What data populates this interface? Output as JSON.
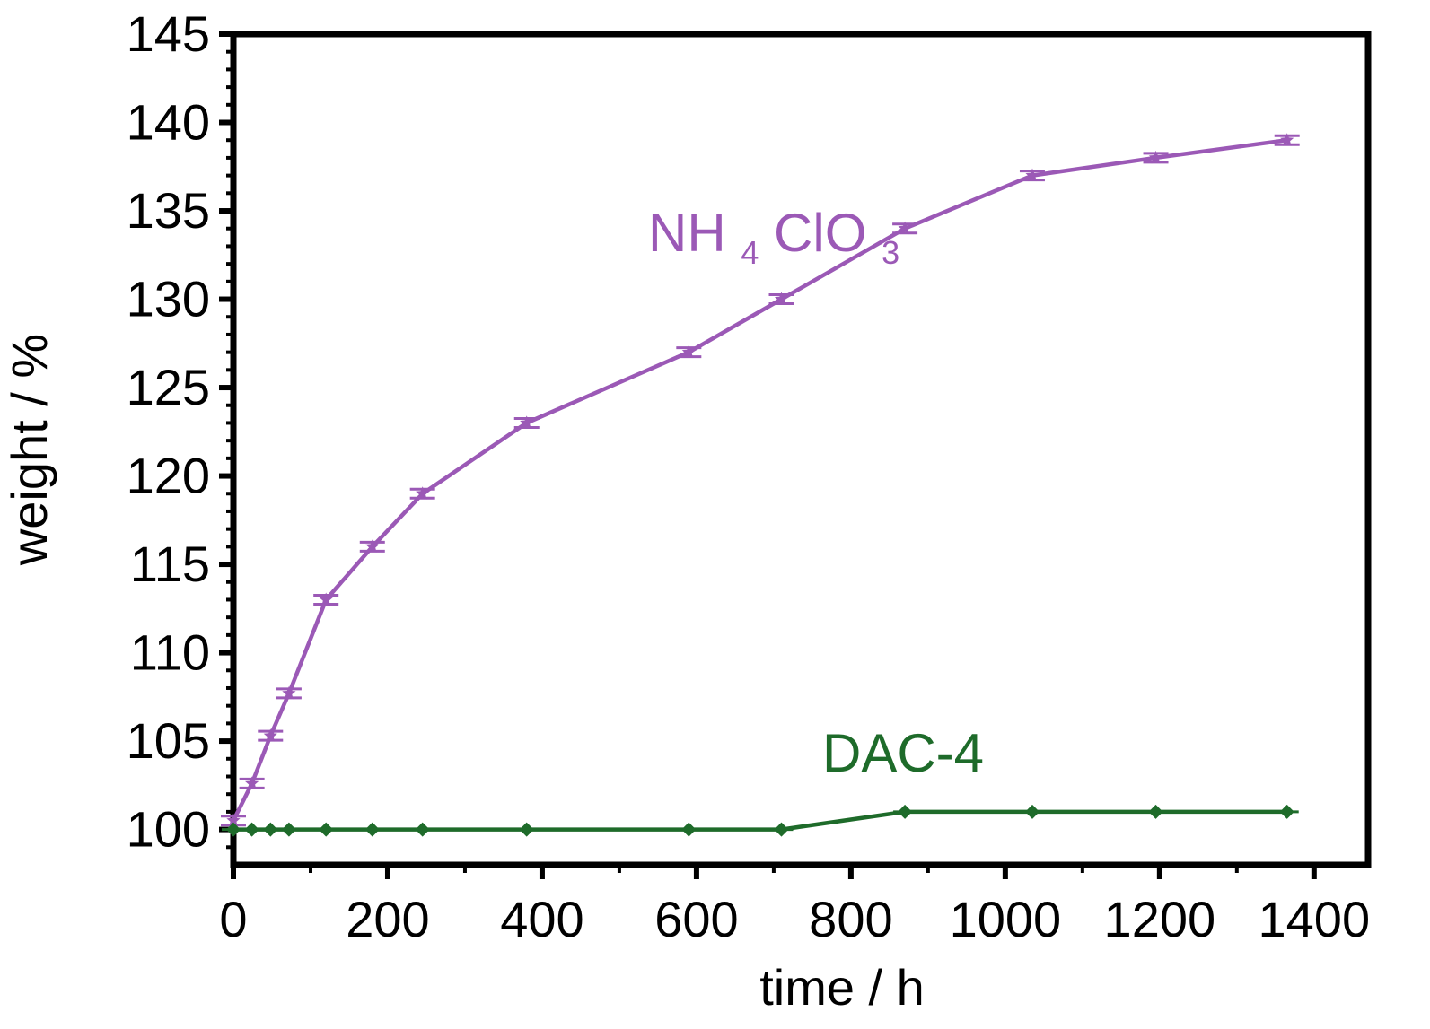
{
  "chart_data": {
    "type": "line",
    "xlabel": "time / h",
    "ylabel": "weight / %",
    "xlim": [
      0,
      1470
    ],
    "ylim": [
      98,
      145
    ],
    "x_ticks": [
      0,
      200,
      400,
      600,
      800,
      1000,
      1200,
      1400
    ],
    "y_ticks": [
      100,
      105,
      110,
      115,
      120,
      125,
      130,
      135,
      140,
      145
    ],
    "x_tick_labels": [
      "0",
      "200",
      "400",
      "600",
      "800",
      "1000",
      "1200",
      "1400"
    ],
    "y_tick_labels": [
      "100",
      "105",
      "110",
      "115",
      "120",
      "125",
      "130",
      "135",
      "140",
      "145"
    ],
    "grid": false,
    "series": [
      {
        "name": "NH4ClO3",
        "label_main_1": "NH",
        "label_sub_1": "4",
        "label_main_2": "ClO",
        "label_sub_2": "3",
        "color": "#9B59B6",
        "marker": "star",
        "x": [
          0,
          24,
          48,
          72,
          120,
          180,
          245,
          380,
          590,
          710,
          870,
          1035,
          1195,
          1365
        ],
        "y": [
          100.5,
          102.6,
          105.3,
          107.7,
          113,
          116,
          119,
          123,
          127,
          130,
          134,
          137,
          138,
          139
        ]
      },
      {
        "name": "DAC-4",
        "label": "DAC-4",
        "color": "#1E6B2A",
        "marker": "diamond",
        "x": [
          0,
          24,
          48,
          72,
          120,
          180,
          245,
          380,
          590,
          710,
          870,
          1035,
          1195,
          1365
        ],
        "y": [
          100,
          100,
          100,
          100,
          100,
          100,
          100,
          100,
          100,
          100,
          101,
          101,
          101,
          101
        ]
      }
    ]
  }
}
